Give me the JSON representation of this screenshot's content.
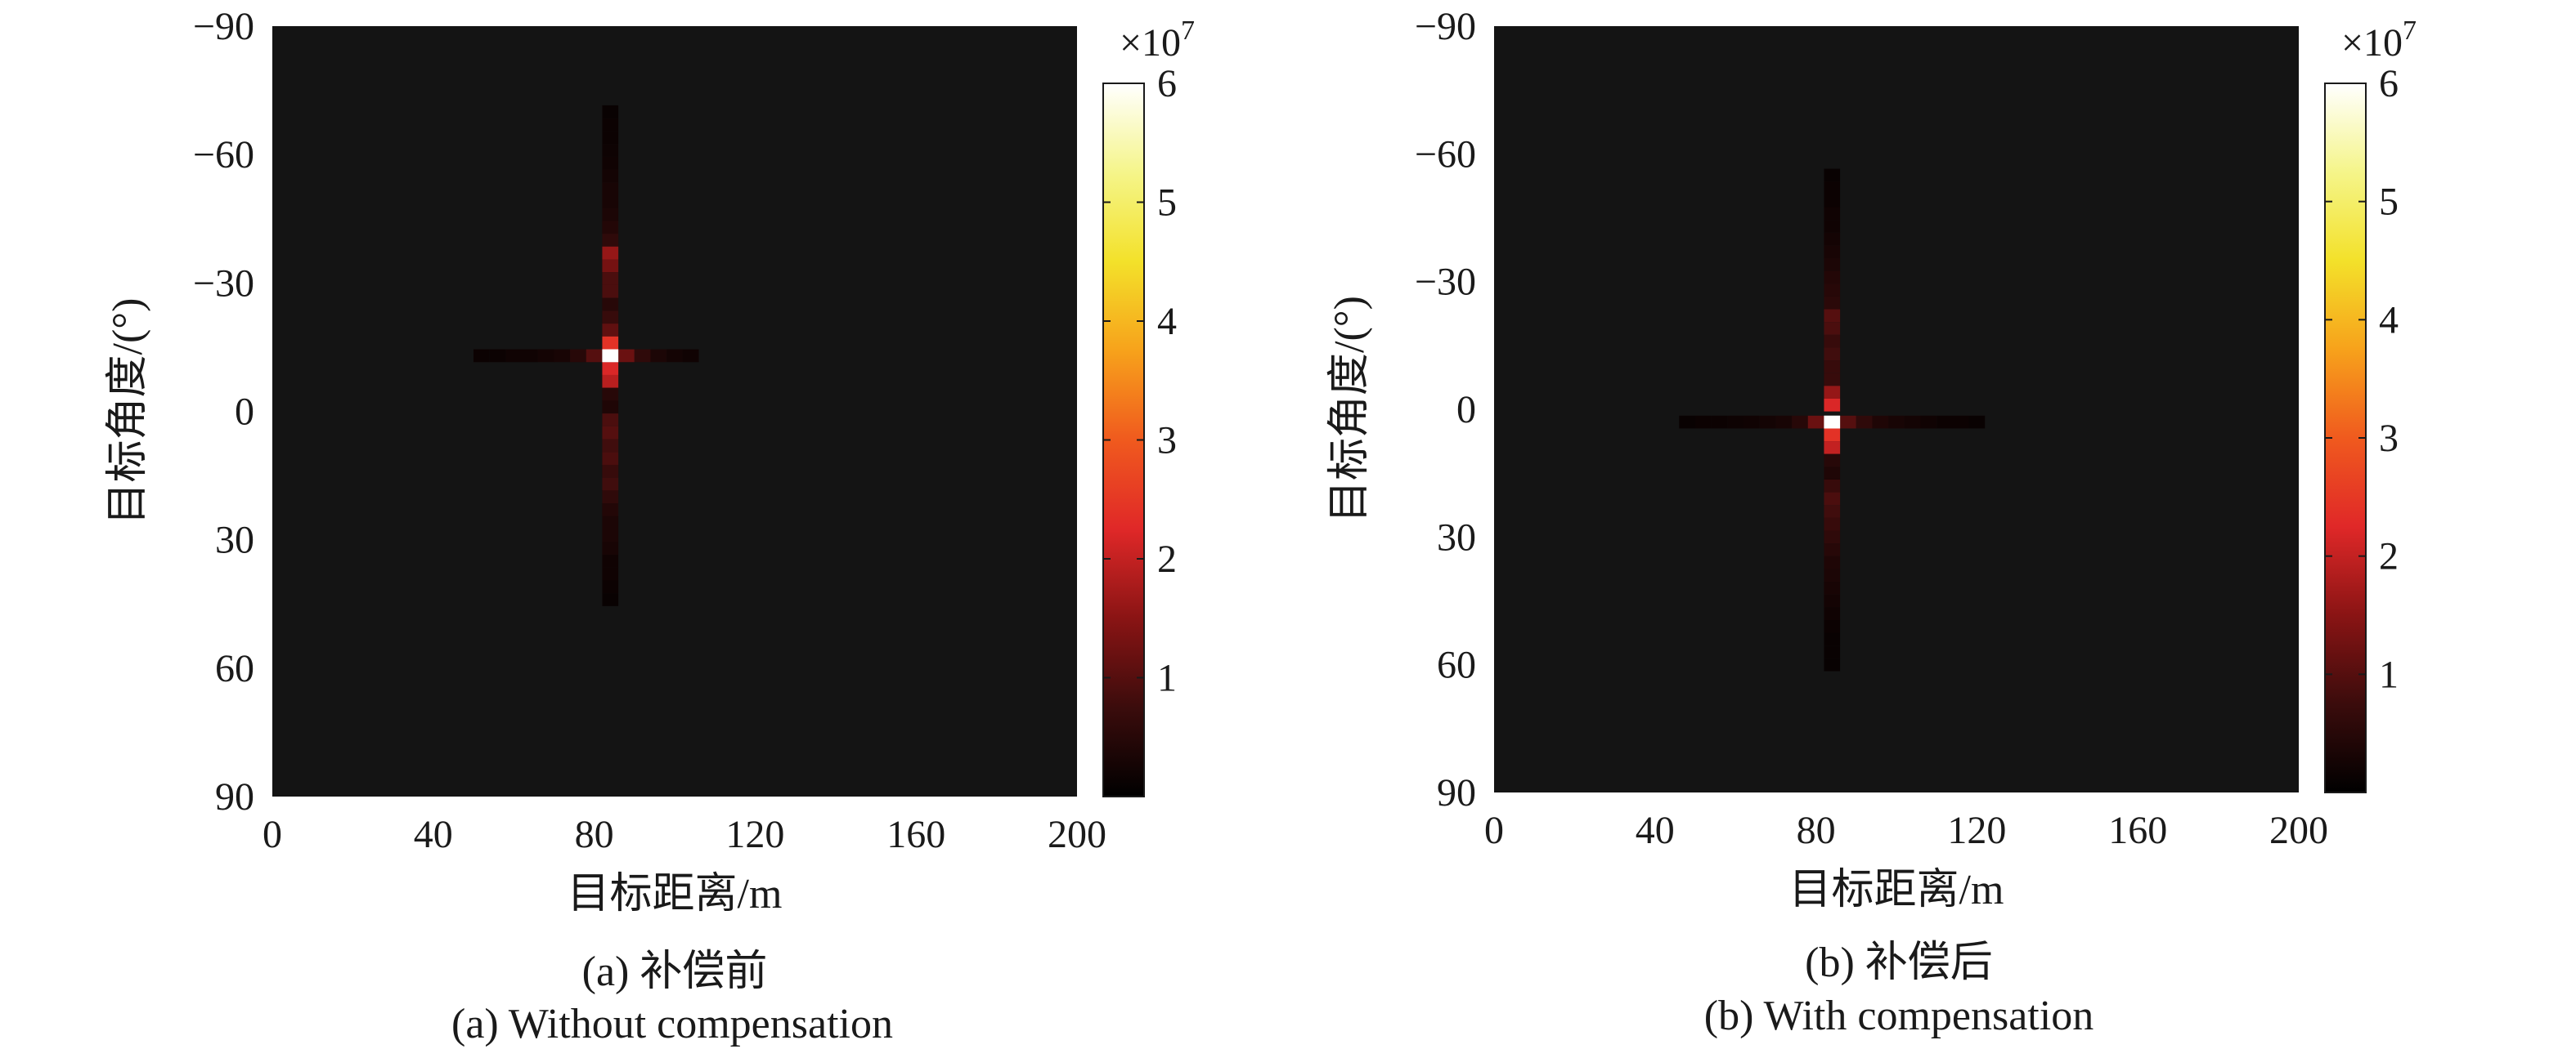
{
  "colormap": [
    "#000000",
    "#3b0c0c",
    "#8a1414",
    "#e02828",
    "#f05a1e",
    "#f7a21b",
    "#f3e12a",
    "#f5f58a",
    "#ffffff"
  ],
  "background_color": "#141414",
  "chart_data": [
    {
      "type": "heatmap",
      "panel": "a",
      "xlabel": "目标距离/m",
      "ylabel": "目标角度/(°)",
      "xlim": [
        0,
        200
      ],
      "ylim": [
        -90,
        90
      ],
      "y_direction": "downward",
      "xticks": [
        "0",
        "40",
        "80",
        "120",
        "160",
        "200"
      ],
      "yticks": [
        "−90",
        "−60",
        "−30",
        "0",
        "30",
        "60",
        "90"
      ],
      "colorbar": {
        "exponent_label": "×10",
        "exponent_power": "7",
        "ticks": [
          "1",
          "2",
          "3",
          "4",
          "5",
          "6"
        ],
        "range": [
          0,
          6
        ]
      },
      "caption_cn": "(a) 补偿前",
      "caption_en": "(a) Without compensation",
      "peak": {
        "range": 84,
        "angle": -13,
        "value": 6.0
      },
      "range_profile": [
        {
          "range": 52,
          "value": 0.15
        },
        {
          "range": 56,
          "value": 0.15
        },
        {
          "range": 60,
          "value": 0.2
        },
        {
          "range": 64,
          "value": 0.2
        },
        {
          "range": 68,
          "value": 0.25
        },
        {
          "range": 72,
          "value": 0.3
        },
        {
          "range": 76,
          "value": 0.5
        },
        {
          "range": 80,
          "value": 1.0
        },
        {
          "range": 84,
          "value": 6.0
        },
        {
          "range": 88,
          "value": 1.2
        },
        {
          "range": 92,
          "value": 0.6
        },
        {
          "range": 96,
          "value": 0.35
        },
        {
          "range": 100,
          "value": 0.25
        },
        {
          "range": 104,
          "value": 0.2
        }
      ],
      "angle_profile": [
        {
          "angle": -70,
          "value": 0.12
        },
        {
          "angle": -67,
          "value": 0.15
        },
        {
          "angle": -64,
          "value": 0.15
        },
        {
          "angle": -61,
          "value": 0.18
        },
        {
          "angle": -58,
          "value": 0.2
        },
        {
          "angle": -55,
          "value": 0.25
        },
        {
          "angle": -52,
          "value": 0.3
        },
        {
          "angle": -49,
          "value": 0.3
        },
        {
          "angle": -46,
          "value": 0.35
        },
        {
          "angle": -43,
          "value": 0.45
        },
        {
          "angle": -40,
          "value": 0.6
        },
        {
          "angle": -37,
          "value": 1.6
        },
        {
          "angle": -34,
          "value": 1.3
        },
        {
          "angle": -31,
          "value": 0.9
        },
        {
          "angle": -28,
          "value": 0.9
        },
        {
          "angle": -25,
          "value": 0.5
        },
        {
          "angle": -22,
          "value": 0.7
        },
        {
          "angle": -19,
          "value": 1.1
        },
        {
          "angle": -16,
          "value": 2.4
        },
        {
          "angle": -13,
          "value": 6.0
        },
        {
          "angle": -10,
          "value": 2.2
        },
        {
          "angle": -7,
          "value": 1.9
        },
        {
          "angle": -4,
          "value": 0.5
        },
        {
          "angle": -1,
          "value": 0.4
        },
        {
          "angle": 2,
          "value": 0.9
        },
        {
          "angle": 5,
          "value": 1.0
        },
        {
          "angle": 8,
          "value": 0.8
        },
        {
          "angle": 11,
          "value": 0.9
        },
        {
          "angle": 14,
          "value": 0.7
        },
        {
          "angle": 17,
          "value": 0.8
        },
        {
          "angle": 20,
          "value": 0.6
        },
        {
          "angle": 23,
          "value": 0.45
        },
        {
          "angle": 26,
          "value": 0.35
        },
        {
          "angle": 29,
          "value": 0.35
        },
        {
          "angle": 32,
          "value": 0.3
        },
        {
          "angle": 35,
          "value": 0.2
        },
        {
          "angle": 38,
          "value": 0.2
        },
        {
          "angle": 41,
          "value": 0.15
        },
        {
          "angle": 44,
          "value": 0.12
        }
      ]
    },
    {
      "type": "heatmap",
      "panel": "b",
      "xlabel": "目标距离/m",
      "ylabel": "目标角度/(°)",
      "xlim": [
        0,
        200
      ],
      "ylim": [
        -90,
        90
      ],
      "y_direction": "downward",
      "xticks": [
        "0",
        "40",
        "80",
        "120",
        "160",
        "200"
      ],
      "yticks": [
        "−90",
        "−60",
        "−30",
        "0",
        "30",
        "60",
        "90"
      ],
      "colorbar": {
        "exponent_label": "×10",
        "exponent_power": "7",
        "ticks": [
          "1",
          "2",
          "3",
          "4",
          "5",
          "6"
        ],
        "range": [
          0,
          6
        ]
      },
      "caption_cn": "(b) 补偿后",
      "caption_en": "(b) With compensation",
      "peak": {
        "range": 84,
        "angle": 3,
        "value": 6.0
      },
      "range_profile": [
        {
          "range": 48,
          "value": 0.12
        },
        {
          "range": 52,
          "value": 0.15
        },
        {
          "range": 56,
          "value": 0.15
        },
        {
          "range": 60,
          "value": 0.18
        },
        {
          "range": 64,
          "value": 0.2
        },
        {
          "range": 68,
          "value": 0.25
        },
        {
          "range": 72,
          "value": 0.3
        },
        {
          "range": 76,
          "value": 0.5
        },
        {
          "range": 80,
          "value": 1.2
        },
        {
          "range": 84,
          "value": 6.0
        },
        {
          "range": 88,
          "value": 1.0
        },
        {
          "range": 92,
          "value": 0.6
        },
        {
          "range": 96,
          "value": 0.4
        },
        {
          "range": 100,
          "value": 0.3
        },
        {
          "range": 104,
          "value": 0.25
        },
        {
          "range": 108,
          "value": 0.2
        },
        {
          "range": 112,
          "value": 0.15
        },
        {
          "range": 116,
          "value": 0.15
        },
        {
          "range": 120,
          "value": 0.12
        }
      ],
      "angle_profile": [
        {
          "angle": -55,
          "value": 0.12
        },
        {
          "angle": -52,
          "value": 0.15
        },
        {
          "angle": -49,
          "value": 0.15
        },
        {
          "angle": -46,
          "value": 0.2
        },
        {
          "angle": -43,
          "value": 0.2
        },
        {
          "angle": -40,
          "value": 0.25
        },
        {
          "angle": -37,
          "value": 0.3
        },
        {
          "angle": -34,
          "value": 0.35
        },
        {
          "angle": -31,
          "value": 0.45
        },
        {
          "angle": -28,
          "value": 0.5
        },
        {
          "angle": -25,
          "value": 0.55
        },
        {
          "angle": -22,
          "value": 1.0
        },
        {
          "angle": -19,
          "value": 0.9
        },
        {
          "angle": -16,
          "value": 0.7
        },
        {
          "angle": -13,
          "value": 0.8
        },
        {
          "angle": -10,
          "value": 0.7
        },
        {
          "angle": -7,
          "value": 0.7
        },
        {
          "angle": -4,
          "value": 1.6
        },
        {
          "angle": -1,
          "value": 2.2
        },
        {
          "angle": 3,
          "value": 6.0
        },
        {
          "angle": 6,
          "value": 2.4
        },
        {
          "angle": 9,
          "value": 2.0
        },
        {
          "angle": 12,
          "value": 0.5
        },
        {
          "angle": 15,
          "value": 0.4
        },
        {
          "angle": 18,
          "value": 0.7
        },
        {
          "angle": 21,
          "value": 0.9
        },
        {
          "angle": 24,
          "value": 0.8
        },
        {
          "angle": 27,
          "value": 0.7
        },
        {
          "angle": 30,
          "value": 0.6
        },
        {
          "angle": 33,
          "value": 0.5
        },
        {
          "angle": 36,
          "value": 0.4
        },
        {
          "angle": 39,
          "value": 0.35
        },
        {
          "angle": 42,
          "value": 0.3
        },
        {
          "angle": 45,
          "value": 0.25
        },
        {
          "angle": 48,
          "value": 0.2
        },
        {
          "angle": 51,
          "value": 0.15
        },
        {
          "angle": 54,
          "value": 0.12
        },
        {
          "angle": 57,
          "value": 0.12
        },
        {
          "angle": 60,
          "value": 0.1
        }
      ]
    }
  ]
}
